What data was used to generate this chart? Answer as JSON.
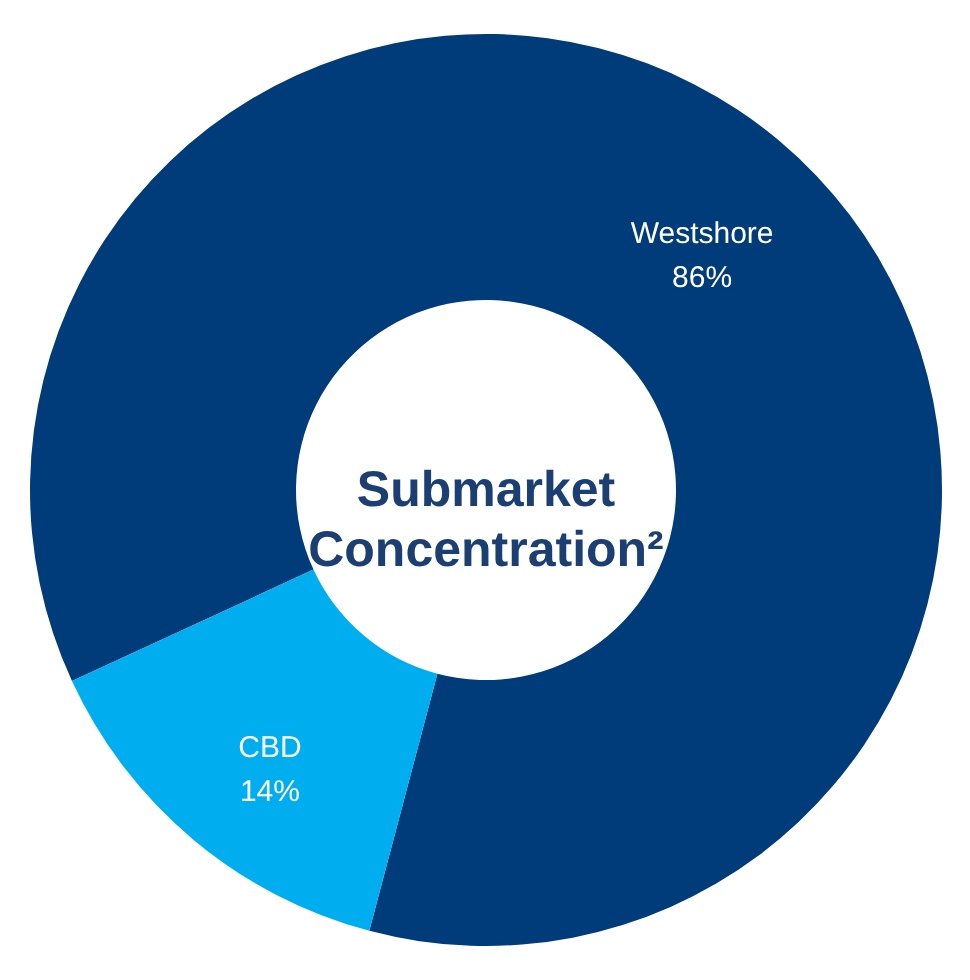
{
  "chart_data": {
    "type": "donut",
    "title": "Submarket Concentration²",
    "categories": [
      "Westshore",
      "CBD"
    ],
    "values": [
      86,
      14
    ],
    "colors": [
      "#003b7a",
      "#00aeef"
    ],
    "value_labels": [
      "86%",
      "14%"
    ],
    "legend": false
  }
}
